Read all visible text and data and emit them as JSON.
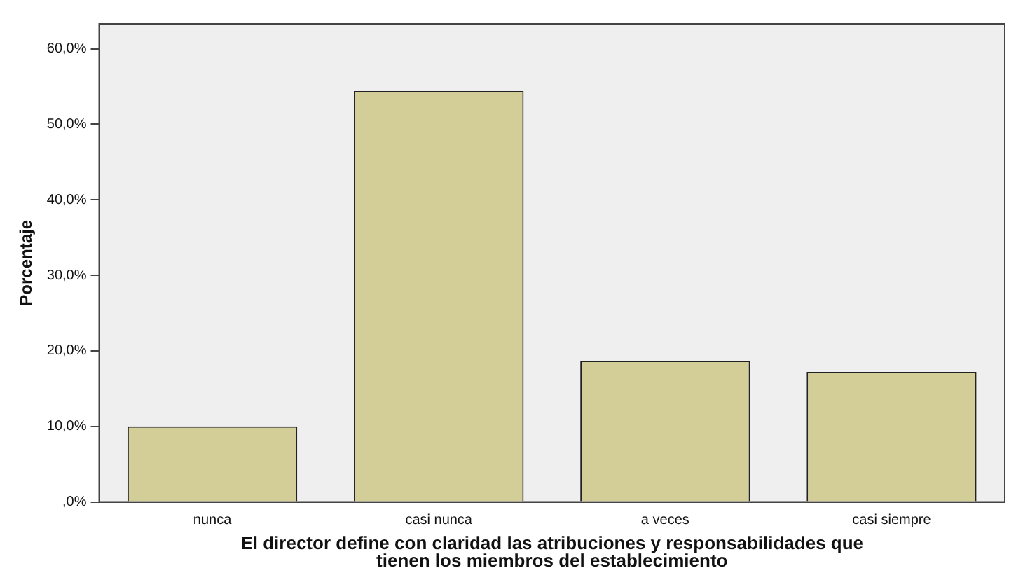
{
  "chart_data": {
    "type": "bar",
    "xlabel": "El director define con claridad las atribuciones y responsabilidades que\ntienen los miembros del establecimiento",
    "ylabel": "Porcentaje",
    "categories": [
      "nunca",
      "casi nunca",
      "a veces",
      "casi siempre"
    ],
    "values": [
      10.0,
      54.4,
      18.7,
      17.2
    ],
    "color": "#d3ce97",
    "ylim": [
      0,
      63.3
    ],
    "yticks": [
      {
        "value": 0,
        "label": ",0%"
      },
      {
        "value": 10,
        "label": "10,0%"
      },
      {
        "value": 20,
        "label": "20,0%"
      },
      {
        "value": 30,
        "label": "30,0%"
      },
      {
        "value": 40,
        "label": "40,0%"
      },
      {
        "value": 50,
        "label": "50,0%"
      },
      {
        "value": 60,
        "label": "60,0%"
      }
    ],
    "grid": false,
    "legend": false
  }
}
